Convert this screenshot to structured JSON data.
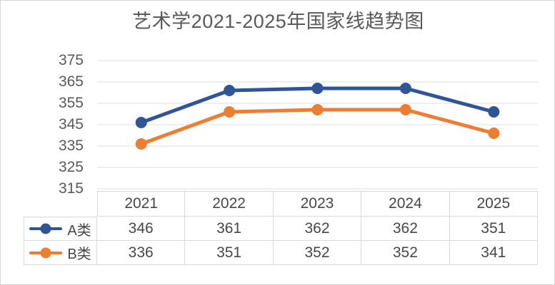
{
  "title": "艺术学2021-2025年国家线趋势图",
  "colors": {
    "series_a": "#2F5597",
    "series_b": "#ED7D31",
    "title_text": "#595959",
    "axis_text": "#595959",
    "table_text": "#474747",
    "gridline": "#E9E9E9",
    "table_border": "#D9D9D9",
    "outer_border": "#D6D6D6",
    "background": "#FFFFFF"
  },
  "chart_data": {
    "type": "line",
    "title": "艺术学2021-2025年国家线趋势图",
    "categories": [
      "2021",
      "2022",
      "2023",
      "2024",
      "2025"
    ],
    "series": [
      {
        "name": "A类",
        "color": "#2F5597",
        "values": [
          346,
          361,
          362,
          362,
          351
        ]
      },
      {
        "name": "B类",
        "color": "#ED7D31",
        "values": [
          336,
          351,
          352,
          352,
          341
        ]
      }
    ],
    "ylim": [
      315,
      375
    ],
    "yticks": [
      375,
      365,
      355,
      345,
      335,
      325,
      315
    ],
    "grid": true,
    "marker": "circle",
    "legend_position": "data-table-left",
    "data_table_shown": true
  }
}
